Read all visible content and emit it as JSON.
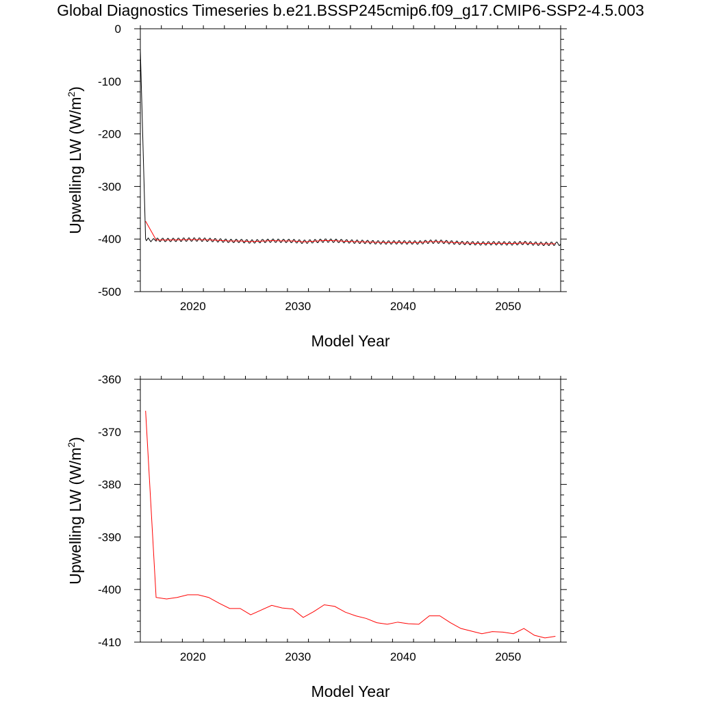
{
  "chart_data": [
    {
      "type": "line",
      "title": "Global Diagnostics Timeseries b.e21.BSSP245cmip6.f09_g17.CMIP6-SSP2-4.5.003",
      "xlabel": "Model Year",
      "ylabel_main": "Upwelling LW (W/m",
      "ylabel_sup": "2",
      "ylabel_close": ")",
      "xlim": [
        2015,
        2055
      ],
      "ylim": [
        -500,
        0
      ],
      "x_ticks": [
        2020,
        2030,
        2040,
        2050
      ],
      "x_tick_labels": [
        "2020",
        "2030",
        "2040",
        "2050"
      ],
      "y_ticks": [
        0,
        -100,
        -200,
        -300,
        -400,
        -500
      ],
      "y_tick_labels": [
        "0",
        "-100",
        "-200",
        "-300",
        "-400",
        "-500"
      ],
      "series": [
        {
          "color": "#000000",
          "kind": "monthly",
          "x": [
            2015.0,
            2015.5,
            2015.58,
            2015.75,
            2016.0,
            2016.25,
            2016.5
          ],
          "y": [
            -40,
            -400,
            -403,
            -398,
            -405,
            -399,
            -404
          ],
          "seasonal_amplitude": 3.5
        },
        {
          "color": "#ff0000",
          "kind": "annual",
          "x": [
            2015.5,
            2016.5,
            2017.5,
            2018.5,
            2019.5,
            2020.5,
            2021.5,
            2022.5,
            2023.5,
            2024.5,
            2025.5,
            2026.5,
            2027.5,
            2028.5,
            2029.5,
            2030.5,
            2031.5,
            2032.5,
            2033.5,
            2034.5,
            2035.5,
            2036.5,
            2037.5,
            2038.5,
            2039.5,
            2040.5,
            2041.5,
            2042.5,
            2043.5,
            2044.5,
            2045.5,
            2046.5,
            2047.5,
            2048.5,
            2049.5,
            2050.5,
            2051.5,
            2052.5,
            2053.5,
            2054.5
          ],
          "y": [
            -366.0,
            -401.5,
            -401.8,
            -401.5,
            -401.0,
            -401.0,
            -401.5,
            -402.6,
            -403.6,
            -403.6,
            -404.8,
            -403.9,
            -403.0,
            -403.5,
            -403.7,
            -405.3,
            -404.2,
            -402.9,
            -403.2,
            -404.3,
            -405.0,
            -405.5,
            -406.3,
            -406.6,
            -406.2,
            -406.5,
            -406.6,
            -405.0,
            -405.0,
            -406.3,
            -407.4,
            -407.9,
            -408.4,
            -408.0,
            -408.1,
            -408.4,
            -407.4,
            -408.7,
            -409.2,
            -408.9
          ]
        }
      ]
    },
    {
      "type": "line",
      "xlabel": "Model Year",
      "ylabel_main": "Upwelling LW (W/m",
      "ylabel_sup": "2",
      "ylabel_close": ")",
      "xlim": [
        2015,
        2055
      ],
      "ylim": [
        -410,
        -360
      ],
      "x_ticks": [
        2020,
        2030,
        2040,
        2050
      ],
      "x_tick_labels": [
        "2020",
        "2030",
        "2040",
        "2050"
      ],
      "y_ticks": [
        -360,
        -370,
        -380,
        -390,
        -400,
        -410
      ],
      "y_tick_labels": [
        "-360",
        "-370",
        "-380",
        "-390",
        "-400",
        "-410"
      ],
      "series": [
        {
          "color": "#ff0000",
          "kind": "annual",
          "x": [
            2015.5,
            2016.5,
            2017.5,
            2018.5,
            2019.5,
            2020.5,
            2021.5,
            2022.5,
            2023.5,
            2024.5,
            2025.5,
            2026.5,
            2027.5,
            2028.5,
            2029.5,
            2030.5,
            2031.5,
            2032.5,
            2033.5,
            2034.5,
            2035.5,
            2036.5,
            2037.5,
            2038.5,
            2039.5,
            2040.5,
            2041.5,
            2042.5,
            2043.5,
            2044.5,
            2045.5,
            2046.5,
            2047.5,
            2048.5,
            2049.5,
            2050.5,
            2051.5,
            2052.5,
            2053.5,
            2054.5
          ],
          "y": [
            -366.0,
            -401.5,
            -401.8,
            -401.5,
            -401.0,
            -401.0,
            -401.5,
            -402.6,
            -403.6,
            -403.6,
            -404.8,
            -403.9,
            -403.0,
            -403.5,
            -403.7,
            -405.3,
            -404.2,
            -402.9,
            -403.2,
            -404.3,
            -405.0,
            -405.5,
            -406.3,
            -406.6,
            -406.2,
            -406.5,
            -406.6,
            -405.0,
            -405.0,
            -406.3,
            -407.4,
            -407.9,
            -408.4,
            -408.0,
            -408.1,
            -408.4,
            -407.4,
            -408.7,
            -409.2,
            -408.9
          ]
        }
      ]
    }
  ]
}
